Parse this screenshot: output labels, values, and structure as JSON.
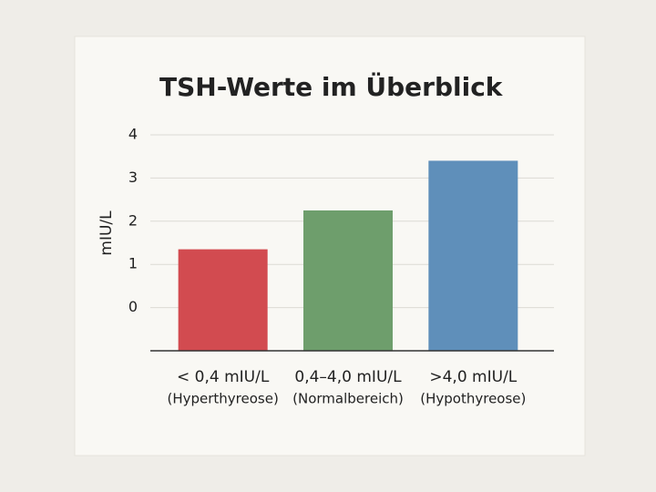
{
  "chart_data": {
    "type": "bar",
    "title": "TSH-Werte im Überblick",
    "y_label": "mIU/L",
    "categories": [
      [
        "< 0,4 mIU/L",
        "(Hyperthyreose)"
      ],
      [
        "0,4–4,0 mIU/L",
        "(Normalbereich)"
      ],
      [
        ">4,0 mIU/L",
        "(Hypothyreose)"
      ]
    ],
    "values": [
      1.35,
      2.25,
      3.4
    ],
    "colors": [
      "#d24b50",
      "#6e9e6c",
      "#5f8fba"
    ],
    "ylim": [
      -1,
      4
    ],
    "yticks": [
      0,
      1,
      2,
      3,
      4
    ],
    "grid": true
  }
}
